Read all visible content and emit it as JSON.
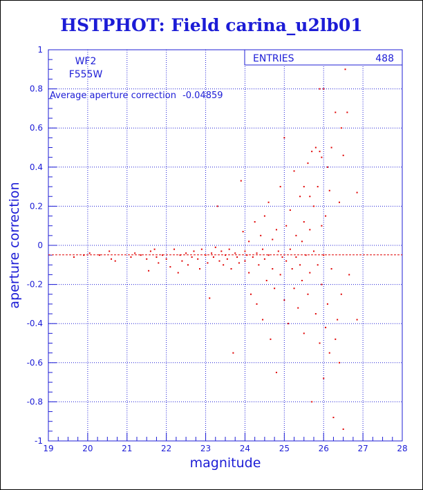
{
  "title": "HSTPHOT: Field carina_u2lb01",
  "colors": {
    "frame": "#1c1cd6",
    "points": "#e00000",
    "grid": "#1c1cd6"
  },
  "panel": {
    "filter_camera": "WF2",
    "filter_name": "F555W",
    "average_label": "Average aperture correction",
    "average_value": "-0.04859",
    "stats_label": "ENTRIES",
    "stats_value": "488"
  },
  "chart_data": {
    "type": "scatter",
    "title": "HSTPHOT: Field carina_u2lb01",
    "xlabel": "magnitude",
    "ylabel": "aperture correction",
    "xlim": [
      19,
      28
    ],
    "ylim": [
      -1,
      1
    ],
    "x_ticks": [
      "19",
      "20",
      "21",
      "22",
      "23",
      "24",
      "25",
      "26",
      "27",
      "28"
    ],
    "y_ticks": [
      "-1",
      "-0.8",
      "-0.6",
      "-0.4",
      "-0.2",
      "0",
      "0.2",
      "0.4",
      "0.6",
      "0.8",
      "1"
    ],
    "grid": true,
    "reference_line": {
      "y": -0.04859,
      "style": "dashed"
    },
    "series": [
      {
        "points": [
          [
            19.65,
            -0.06
          ],
          [
            19.9,
            -0.05
          ],
          [
            20.05,
            -0.04
          ],
          [
            20.3,
            -0.05
          ],
          [
            20.55,
            -0.03
          ],
          [
            20.6,
            -0.07
          ],
          [
            20.7,
            -0.08
          ],
          [
            21.1,
            -0.06
          ],
          [
            21.2,
            -0.04
          ],
          [
            21.35,
            -0.05
          ],
          [
            21.5,
            -0.07
          ],
          [
            21.55,
            -0.13
          ],
          [
            21.6,
            -0.03
          ],
          [
            21.7,
            -0.02
          ],
          [
            21.75,
            -0.06
          ],
          [
            21.8,
            -0.09
          ],
          [
            21.9,
            -0.05
          ],
          [
            22.0,
            -0.07
          ],
          [
            22.1,
            -0.11
          ],
          [
            22.2,
            -0.02
          ],
          [
            22.3,
            -0.14
          ],
          [
            22.35,
            -0.05
          ],
          [
            22.4,
            -0.08
          ],
          [
            22.5,
            -0.04
          ],
          [
            22.55,
            -0.1
          ],
          [
            22.65,
            -0.06
          ],
          [
            22.7,
            -0.03
          ],
          [
            22.8,
            -0.07
          ],
          [
            22.85,
            -0.12
          ],
          [
            22.9,
            -0.02
          ],
          [
            23.0,
            -0.05
          ],
          [
            23.05,
            -0.09
          ],
          [
            23.1,
            -0.27
          ],
          [
            23.15,
            -0.04
          ],
          [
            23.2,
            -0.06
          ],
          [
            23.25,
            -0.01
          ],
          [
            23.3,
            0.2
          ],
          [
            23.35,
            -0.08
          ],
          [
            23.4,
            -0.03
          ],
          [
            23.45,
            -0.1
          ],
          [
            23.5,
            -0.05
          ],
          [
            23.55,
            -0.07
          ],
          [
            23.6,
            -0.02
          ],
          [
            23.65,
            -0.12
          ],
          [
            23.7,
            -0.55
          ],
          [
            23.75,
            -0.04
          ],
          [
            23.8,
            -0.06
          ],
          [
            23.85,
            -0.09
          ],
          [
            23.9,
            0.33
          ],
          [
            23.95,
            0.07
          ],
          [
            24.0,
            -0.03
          ],
          [
            24.0,
            -0.08
          ],
          [
            24.05,
            -0.05
          ],
          [
            24.1,
            0.02
          ],
          [
            24.1,
            -0.14
          ],
          [
            24.15,
            -0.25
          ],
          [
            24.2,
            -0.06
          ],
          [
            24.25,
            0.12
          ],
          [
            24.3,
            -0.04
          ],
          [
            24.3,
            -0.3
          ],
          [
            24.35,
            -0.1
          ],
          [
            24.4,
            0.05
          ],
          [
            24.45,
            -0.02
          ],
          [
            24.45,
            -0.38
          ],
          [
            24.5,
            0.15
          ],
          [
            24.5,
            -0.07
          ],
          [
            24.55,
            -0.18
          ],
          [
            24.6,
            0.22
          ],
          [
            24.6,
            -0.05
          ],
          [
            24.65,
            -0.48
          ],
          [
            24.7,
            0.03
          ],
          [
            24.7,
            -0.12
          ],
          [
            24.75,
            -0.22
          ],
          [
            24.8,
            0.08
          ],
          [
            24.8,
            -0.65
          ],
          [
            24.85,
            -0.03
          ],
          [
            24.9,
            0.3
          ],
          [
            24.9,
            -0.15
          ],
          [
            24.95,
            -0.06
          ],
          [
            25.0,
            0.55
          ],
          [
            25.0,
            -0.28
          ],
          [
            25.05,
            0.1
          ],
          [
            25.05,
            -0.08
          ],
          [
            25.1,
            -0.4
          ],
          [
            25.15,
            0.18
          ],
          [
            25.15,
            -0.02
          ],
          [
            25.2,
            -0.12
          ],
          [
            25.25,
            0.38
          ],
          [
            25.25,
            -0.22
          ],
          [
            25.3,
            0.05
          ],
          [
            25.3,
            -0.06
          ],
          [
            25.35,
            -0.32
          ],
          [
            25.4,
            0.25
          ],
          [
            25.4,
            -0.1
          ],
          [
            25.45,
            0.02
          ],
          [
            25.45,
            -0.18
          ],
          [
            25.5,
            0.12
          ],
          [
            25.5,
            -0.45
          ],
          [
            25.55,
            -0.05
          ],
          [
            25.6,
            0.42
          ],
          [
            25.6,
            -0.25
          ],
          [
            25.65,
            0.08
          ],
          [
            25.65,
            -0.14
          ],
          [
            25.7,
            0.48
          ],
          [
            25.7,
            -0.8
          ],
          [
            25.75,
            0.2
          ],
          [
            25.75,
            -0.03
          ],
          [
            25.8,
            -0.35
          ],
          [
            25.85,
            0.3
          ],
          [
            25.85,
            -0.1
          ],
          [
            25.9,
            0.48
          ],
          [
            25.9,
            -0.5
          ],
          [
            25.95,
            0.1
          ],
          [
            25.95,
            -0.2
          ],
          [
            26.0,
            -0.68
          ],
          [
            26.0,
            -0.05
          ],
          [
            26.05,
            0.15
          ],
          [
            26.05,
            -0.42
          ],
          [
            26.1,
            -0.3
          ],
          [
            26.15,
            0.28
          ],
          [
            26.15,
            -0.55
          ],
          [
            26.2,
            0.5
          ],
          [
            26.2,
            -0.12
          ],
          [
            26.25,
            -0.88
          ],
          [
            26.3,
            0.68
          ],
          [
            26.3,
            -0.48
          ],
          [
            26.35,
            -0.38
          ],
          [
            26.4,
            0.22
          ],
          [
            26.4,
            -0.6
          ],
          [
            26.45,
            0.6
          ],
          [
            26.45,
            -0.25
          ],
          [
            26.5,
            0.46
          ],
          [
            26.5,
            -0.94
          ],
          [
            26.55,
            0.9
          ],
          [
            26.6,
            0.68
          ],
          [
            26.65,
            -0.15
          ],
          [
            26.85,
            0.27
          ],
          [
            26.85,
            -0.38
          ],
          [
            25.9,
            0.8
          ],
          [
            26.0,
            0.8
          ],
          [
            25.8,
            0.5
          ],
          [
            25.95,
            0.45
          ],
          [
            26.1,
            0.4
          ],
          [
            25.5,
            0.3
          ],
          [
            25.65,
            0.25
          ]
        ]
      }
    ]
  }
}
